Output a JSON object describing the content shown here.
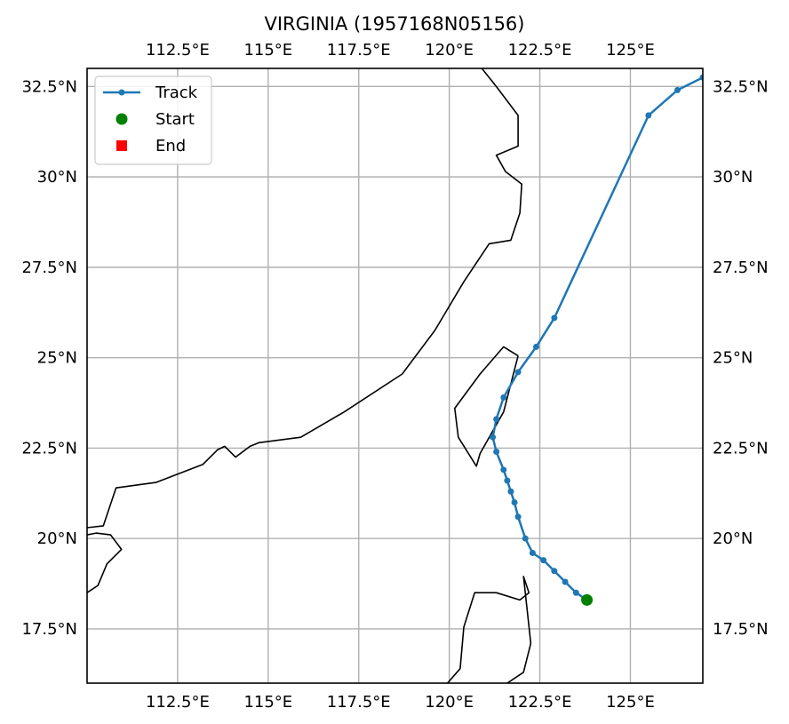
{
  "title": "VIRGINIA (1957168N05156)",
  "map": {
    "lon_range": [
      110.0,
      127.0
    ],
    "lat_range": [
      16.0,
      33.0
    ],
    "gridlines": true,
    "lon_ticks": [
      {
        "value": 112.5,
        "label": "112.5°E"
      },
      {
        "value": 115.0,
        "label": "115°E"
      },
      {
        "value": 117.5,
        "label": "117.5°E"
      },
      {
        "value": 120.0,
        "label": "120°E"
      },
      {
        "value": 122.5,
        "label": "122.5°E"
      },
      {
        "value": 125.0,
        "label": "125°E"
      }
    ],
    "lat_ticks": [
      {
        "value": 17.5,
        "label": "17.5°N"
      },
      {
        "value": 20.0,
        "label": "20°N"
      },
      {
        "value": 22.5,
        "label": "22.5°N"
      },
      {
        "value": 25.0,
        "label": "25°N"
      },
      {
        "value": 27.5,
        "label": "27.5°N"
      },
      {
        "value": 30.0,
        "label": "30°N"
      },
      {
        "value": 32.5,
        "label": "32.5°N"
      }
    ]
  },
  "legend": {
    "placement": "top-left",
    "entries": [
      {
        "label": "Track",
        "marker": "line-dot",
        "color": "#1f77b4"
      },
      {
        "label": "Start",
        "marker": "circle",
        "color": "#008000"
      },
      {
        "label": "End",
        "marker": "square",
        "color": "#ff0000"
      }
    ]
  },
  "chart_data": {
    "type": "line",
    "x_unit": "degrees east longitude",
    "y_unit": "degrees north latitude",
    "track_color": "#1f77b4",
    "start_color": "#008000",
    "end_color": "#ff0000",
    "start": {
      "lon": 123.8,
      "lat": 18.3
    },
    "track": [
      {
        "lon": 123.8,
        "lat": 18.3
      },
      {
        "lon": 123.5,
        "lat": 18.5
      },
      {
        "lon": 123.2,
        "lat": 18.8
      },
      {
        "lon": 122.9,
        "lat": 19.1
      },
      {
        "lon": 122.6,
        "lat": 19.4
      },
      {
        "lon": 122.3,
        "lat": 19.6
      },
      {
        "lon": 122.1,
        "lat": 20.0
      },
      {
        "lon": 121.9,
        "lat": 20.6
      },
      {
        "lon": 121.8,
        "lat": 21.0
      },
      {
        "lon": 121.7,
        "lat": 21.3
      },
      {
        "lon": 121.6,
        "lat": 21.6
      },
      {
        "lon": 121.5,
        "lat": 21.9
      },
      {
        "lon": 121.3,
        "lat": 22.4
      },
      {
        "lon": 121.2,
        "lat": 22.8
      },
      {
        "lon": 121.3,
        "lat": 23.3
      },
      {
        "lon": 121.5,
        "lat": 23.9
      },
      {
        "lon": 121.9,
        "lat": 24.6
      },
      {
        "lon": 122.4,
        "lat": 25.3
      },
      {
        "lon": 122.9,
        "lat": 26.1
      },
      {
        "lon": 125.5,
        "lat": 31.7
      },
      {
        "lon": 126.3,
        "lat": 32.4
      },
      {
        "lon": 127.0,
        "lat": 32.75
      }
    ],
    "coastlines": [
      {
        "name": "mainland-china",
        "points": [
          [
            110.0,
            20.3
          ],
          [
            110.45,
            20.35
          ],
          [
            110.8,
            21.4
          ],
          [
            111.9,
            21.55
          ],
          [
            113.2,
            22.05
          ],
          [
            113.6,
            22.45
          ],
          [
            113.8,
            22.55
          ],
          [
            114.1,
            22.25
          ],
          [
            114.5,
            22.55
          ],
          [
            114.75,
            22.65
          ],
          [
            115.9,
            22.8
          ],
          [
            117.1,
            23.5
          ],
          [
            118.7,
            24.55
          ],
          [
            119.6,
            25.75
          ],
          [
            120.4,
            27.1
          ],
          [
            121.1,
            28.15
          ],
          [
            121.7,
            28.25
          ],
          [
            121.95,
            29.0
          ],
          [
            122.0,
            29.8
          ],
          [
            121.55,
            30.15
          ],
          [
            121.3,
            30.6
          ],
          [
            121.9,
            30.85
          ],
          [
            121.9,
            31.7
          ],
          [
            121.3,
            32.5
          ],
          [
            120.9,
            33.0
          ]
        ]
      },
      {
        "name": "taiwan",
        "points": [
          [
            121.9,
            25.05
          ],
          [
            121.5,
            25.3
          ],
          [
            120.85,
            24.55
          ],
          [
            120.15,
            23.6
          ],
          [
            120.25,
            22.8
          ],
          [
            120.75,
            22.0
          ],
          [
            120.85,
            22.35
          ],
          [
            121.5,
            23.5
          ],
          [
            121.9,
            25.05
          ]
        ]
      },
      {
        "name": "luzon",
        "points": [
          [
            119.95,
            16.0
          ],
          [
            120.3,
            16.4
          ],
          [
            120.4,
            17.55
          ],
          [
            120.7,
            18.5
          ],
          [
            121.3,
            18.5
          ],
          [
            121.95,
            18.3
          ],
          [
            122.2,
            18.5
          ],
          [
            122.05,
            18.95
          ],
          [
            122.25,
            17.1
          ],
          [
            122.05,
            16.3
          ],
          [
            121.6,
            16.0
          ]
        ]
      },
      {
        "name": "hainan",
        "points": [
          [
            110.0,
            20.1
          ],
          [
            110.25,
            20.15
          ],
          [
            110.65,
            20.1
          ],
          [
            110.95,
            19.7
          ],
          [
            110.55,
            19.3
          ],
          [
            110.3,
            18.7
          ],
          [
            110.0,
            18.5
          ]
        ]
      }
    ]
  }
}
